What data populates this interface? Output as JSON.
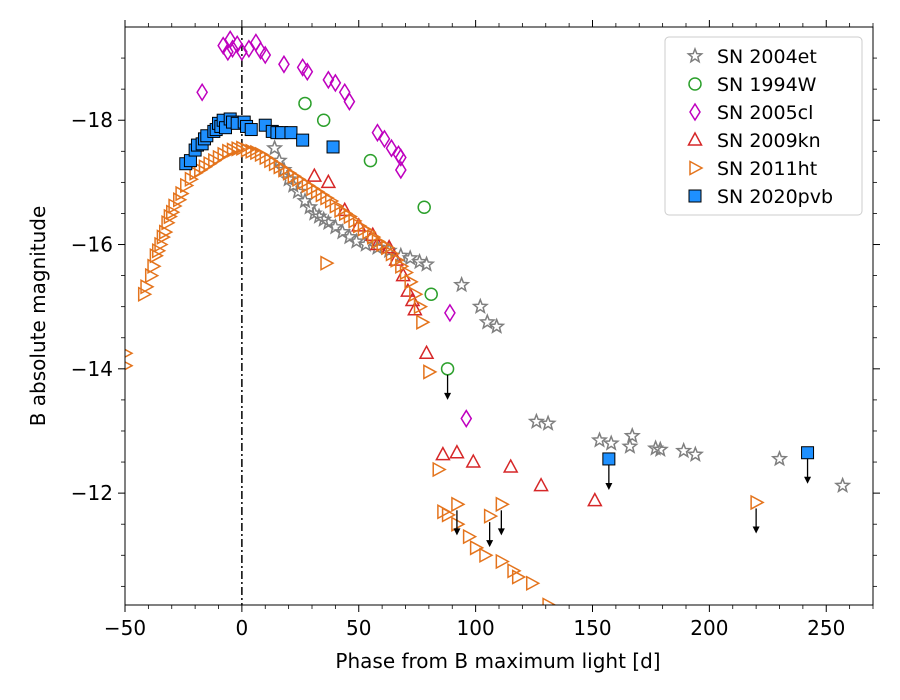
{
  "chart_data": {
    "type": "scatter",
    "xlabel": "Phase from B maximum light [d]",
    "ylabel": "B absolute magnitude",
    "xlim": [
      -50,
      270
    ],
    "ylim": [
      -10.2,
      -19.5
    ],
    "y_inverted": true,
    "x_ticks": [
      -50,
      0,
      50,
      100,
      150,
      200,
      250
    ],
    "x_tick_labels": [
      "−50",
      "0",
      "50",
      "100",
      "150",
      "200",
      "250"
    ],
    "y_ticks": [
      -18,
      -16,
      -14,
      -12
    ],
    "y_tick_labels": [
      "−18",
      "−16",
      "−14",
      "−12"
    ],
    "legend_position": "top-right",
    "max_light_line_x": 0,
    "series": [
      {
        "name": "SN 2004et",
        "marker": "star",
        "color": "#7f7f7f",
        "fill": "none",
        "points": [
          [
            14,
            -17.55
          ],
          [
            16,
            -17.35
          ],
          [
            18,
            -17.2
          ],
          [
            20,
            -17.05
          ],
          [
            22,
            -16.95
          ],
          [
            24,
            -16.85
          ],
          [
            27,
            -16.7
          ],
          [
            29,
            -16.6
          ],
          [
            31,
            -16.5
          ],
          [
            33,
            -16.45
          ],
          [
            35,
            -16.4
          ],
          [
            37,
            -16.35
          ],
          [
            40,
            -16.28
          ],
          [
            43,
            -16.2
          ],
          [
            46,
            -16.12
          ],
          [
            49,
            -16.05
          ],
          [
            53,
            -16.0
          ],
          [
            58,
            -15.95
          ],
          [
            63,
            -15.9
          ],
          [
            68,
            -15.82
          ],
          [
            72,
            -15.78
          ],
          [
            76,
            -15.72
          ],
          [
            79,
            -15.68
          ],
          [
            94,
            -15.35
          ],
          [
            102,
            -15.0
          ],
          [
            105,
            -14.75
          ],
          [
            109,
            -14.68
          ],
          [
            126,
            -13.15
          ],
          [
            131,
            -13.12
          ],
          [
            153,
            -12.85
          ],
          [
            158,
            -12.8
          ],
          [
            166,
            -12.75
          ],
          [
            167,
            -12.92
          ],
          [
            177,
            -12.72
          ],
          [
            179,
            -12.7
          ],
          [
            189,
            -12.68
          ],
          [
            194,
            -12.62
          ],
          [
            230,
            -12.55
          ],
          [
            257,
            -12.12
          ]
        ]
      },
      {
        "name": "SN 1994W",
        "marker": "circle",
        "color": "#2ca02c",
        "fill": "none",
        "points": [
          [
            27,
            -18.27
          ],
          [
            35,
            -18.0
          ],
          [
            55,
            -17.35
          ],
          [
            78,
            -16.6
          ],
          [
            81,
            -15.2
          ],
          [
            88,
            -14.0
          ]
        ]
      },
      {
        "name": "SN 2005cl",
        "marker": "diamond",
        "color": "#bf00bf",
        "fill": "none",
        "points": [
          [
            -17,
            -18.45
          ],
          [
            -8,
            -19.2
          ],
          [
            -6,
            -19.1
          ],
          [
            -5,
            -19.3
          ],
          [
            -4,
            -19.15
          ],
          [
            -2,
            -19.22
          ],
          [
            0,
            -19.1
          ],
          [
            3,
            -19.15
          ],
          [
            6,
            -19.25
          ],
          [
            8,
            -19.12
          ],
          [
            10,
            -19.05
          ],
          [
            18,
            -18.9
          ],
          [
            26,
            -18.85
          ],
          [
            28,
            -18.78
          ],
          [
            37,
            -18.65
          ],
          [
            40,
            -18.6
          ],
          [
            44,
            -18.45
          ],
          [
            46,
            -18.3
          ],
          [
            58,
            -17.8
          ],
          [
            61,
            -17.7
          ],
          [
            64,
            -17.55
          ],
          [
            67,
            -17.45
          ],
          [
            68,
            -17.4
          ],
          [
            68,
            -17.2
          ],
          [
            89,
            -14.9
          ],
          [
            96,
            -13.2
          ]
        ]
      },
      {
        "name": "SN 2009kn",
        "marker": "triangle-up",
        "color": "#d62728",
        "fill": "none",
        "points": [
          [
            31,
            -17.1
          ],
          [
            37,
            -17.0
          ],
          [
            44,
            -16.55
          ],
          [
            50,
            -16.3
          ],
          [
            56,
            -16.15
          ],
          [
            58,
            -16.0
          ],
          [
            63,
            -15.95
          ],
          [
            66,
            -15.75
          ],
          [
            69,
            -15.5
          ],
          [
            71,
            -15.25
          ],
          [
            73,
            -15.1
          ],
          [
            74,
            -14.95
          ],
          [
            79,
            -14.25
          ],
          [
            86,
            -12.62
          ],
          [
            92,
            -12.65
          ],
          [
            99,
            -12.5
          ],
          [
            115,
            -12.42
          ],
          [
            128,
            -12.12
          ],
          [
            151,
            -11.88
          ]
        ]
      },
      {
        "name": "SN 2011ht",
        "marker": "triangle-right",
        "color": "#e4741d",
        "fill": "none",
        "points": [
          [
            -50,
            -14.25
          ],
          [
            -50,
            -14.05
          ],
          [
            -42,
            -15.2
          ],
          [
            -41,
            -15.32
          ],
          [
            -39,
            -15.5
          ],
          [
            -38,
            -15.65
          ],
          [
            -37,
            -15.82
          ],
          [
            -36,
            -15.9
          ],
          [
            -35,
            -16.0
          ],
          [
            -34,
            -16.12
          ],
          [
            -33,
            -16.2
          ],
          [
            -32,
            -16.35
          ],
          [
            -31,
            -16.45
          ],
          [
            -30,
            -16.52
          ],
          [
            -29,
            -16.62
          ],
          [
            -27,
            -16.72
          ],
          [
            -26,
            -16.82
          ],
          [
            -24,
            -16.95
          ],
          [
            -22,
            -17.05
          ],
          [
            -20,
            -17.15
          ],
          [
            -18,
            -17.2
          ],
          [
            -16,
            -17.25
          ],
          [
            -14,
            -17.3
          ],
          [
            -12,
            -17.35
          ],
          [
            -10,
            -17.4
          ],
          [
            -8,
            -17.45
          ],
          [
            -6,
            -17.5
          ],
          [
            -4,
            -17.52
          ],
          [
            -2,
            -17.54
          ],
          [
            0,
            -17.55
          ],
          [
            2,
            -17.52
          ],
          [
            4,
            -17.5
          ],
          [
            6,
            -17.48
          ],
          [
            8,
            -17.45
          ],
          [
            10,
            -17.4
          ],
          [
            12,
            -17.35
          ],
          [
            14,
            -17.3
          ],
          [
            16,
            -17.25
          ],
          [
            18,
            -17.2
          ],
          [
            20,
            -17.15
          ],
          [
            22,
            -17.1
          ],
          [
            24,
            -17.05
          ],
          [
            26,
            -17.0
          ],
          [
            28,
            -16.95
          ],
          [
            30,
            -16.9
          ],
          [
            32,
            -16.85
          ],
          [
            34,
            -16.8
          ],
          [
            36,
            -16.75
          ],
          [
            38,
            -16.7
          ],
          [
            40,
            -16.62
          ],
          [
            42,
            -16.55
          ],
          [
            44,
            -16.5
          ],
          [
            46,
            -16.45
          ],
          [
            48,
            -16.38
          ],
          [
            50,
            -16.3
          ],
          [
            52,
            -16.25
          ],
          [
            54,
            -16.2
          ],
          [
            56,
            -16.12
          ],
          [
            58,
            -16.05
          ],
          [
            60,
            -16.0
          ],
          [
            62,
            -15.95
          ],
          [
            64,
            -15.85
          ],
          [
            66,
            -15.75
          ],
          [
            68,
            -15.65
          ],
          [
            70,
            -15.55
          ],
          [
            72,
            -15.4
          ],
          [
            74,
            -15.2
          ],
          [
            76,
            -15.0
          ],
          [
            77,
            -14.75
          ],
          [
            36,
            -15.7
          ],
          [
            80,
            -13.95
          ],
          [
            84,
            -12.38
          ],
          [
            86,
            -11.7
          ],
          [
            88,
            -11.65
          ],
          [
            92,
            -11.5
          ],
          [
            97,
            -11.3
          ],
          [
            100,
            -11.12
          ],
          [
            104,
            -11.0
          ],
          [
            106,
            -11.63
          ],
          [
            111,
            -11.82
          ],
          [
            111,
            -10.9
          ],
          [
            116,
            -10.75
          ],
          [
            118,
            -10.65
          ],
          [
            124,
            -10.55
          ],
          [
            131,
            -10.2
          ],
          [
            92,
            -11.82
          ],
          [
            220,
            -11.85
          ]
        ]
      },
      {
        "name": "SN 2020pvb",
        "marker": "square",
        "color": "#1e90ff",
        "fill": "#1e90ff",
        "points": [
          [
            -24,
            -17.3
          ],
          [
            -22,
            -17.35
          ],
          [
            -20,
            -17.52
          ],
          [
            -19,
            -17.6
          ],
          [
            -17,
            -17.62
          ],
          [
            -16,
            -17.7
          ],
          [
            -15,
            -17.75
          ],
          [
            -12,
            -17.82
          ],
          [
            -11,
            -17.85
          ],
          [
            -10,
            -17.95
          ],
          [
            -9,
            -17.9
          ],
          [
            -8,
            -18.0
          ],
          [
            -7,
            -17.88
          ],
          [
            -5,
            -18.02
          ],
          [
            -4,
            -17.97
          ],
          [
            -2,
            -17.95
          ],
          [
            1,
            -17.97
          ],
          [
            2,
            -17.9
          ],
          [
            4,
            -17.85
          ],
          [
            10,
            -17.92
          ],
          [
            13,
            -17.82
          ],
          [
            15,
            -17.8
          ],
          [
            17,
            -17.8
          ],
          [
            21,
            -17.8
          ],
          [
            26,
            -17.68
          ],
          [
            39,
            -17.57
          ],
          [
            157,
            -12.55
          ],
          [
            242,
            -12.65
          ]
        ]
      }
    ],
    "upper_limits": [
      [
        88,
        -14.0
      ],
      [
        92,
        -11.82
      ],
      [
        106,
        -11.63
      ],
      [
        111,
        -11.82
      ],
      [
        157,
        -12.55
      ],
      [
        220,
        -11.85
      ],
      [
        242,
        -12.65
      ]
    ]
  }
}
